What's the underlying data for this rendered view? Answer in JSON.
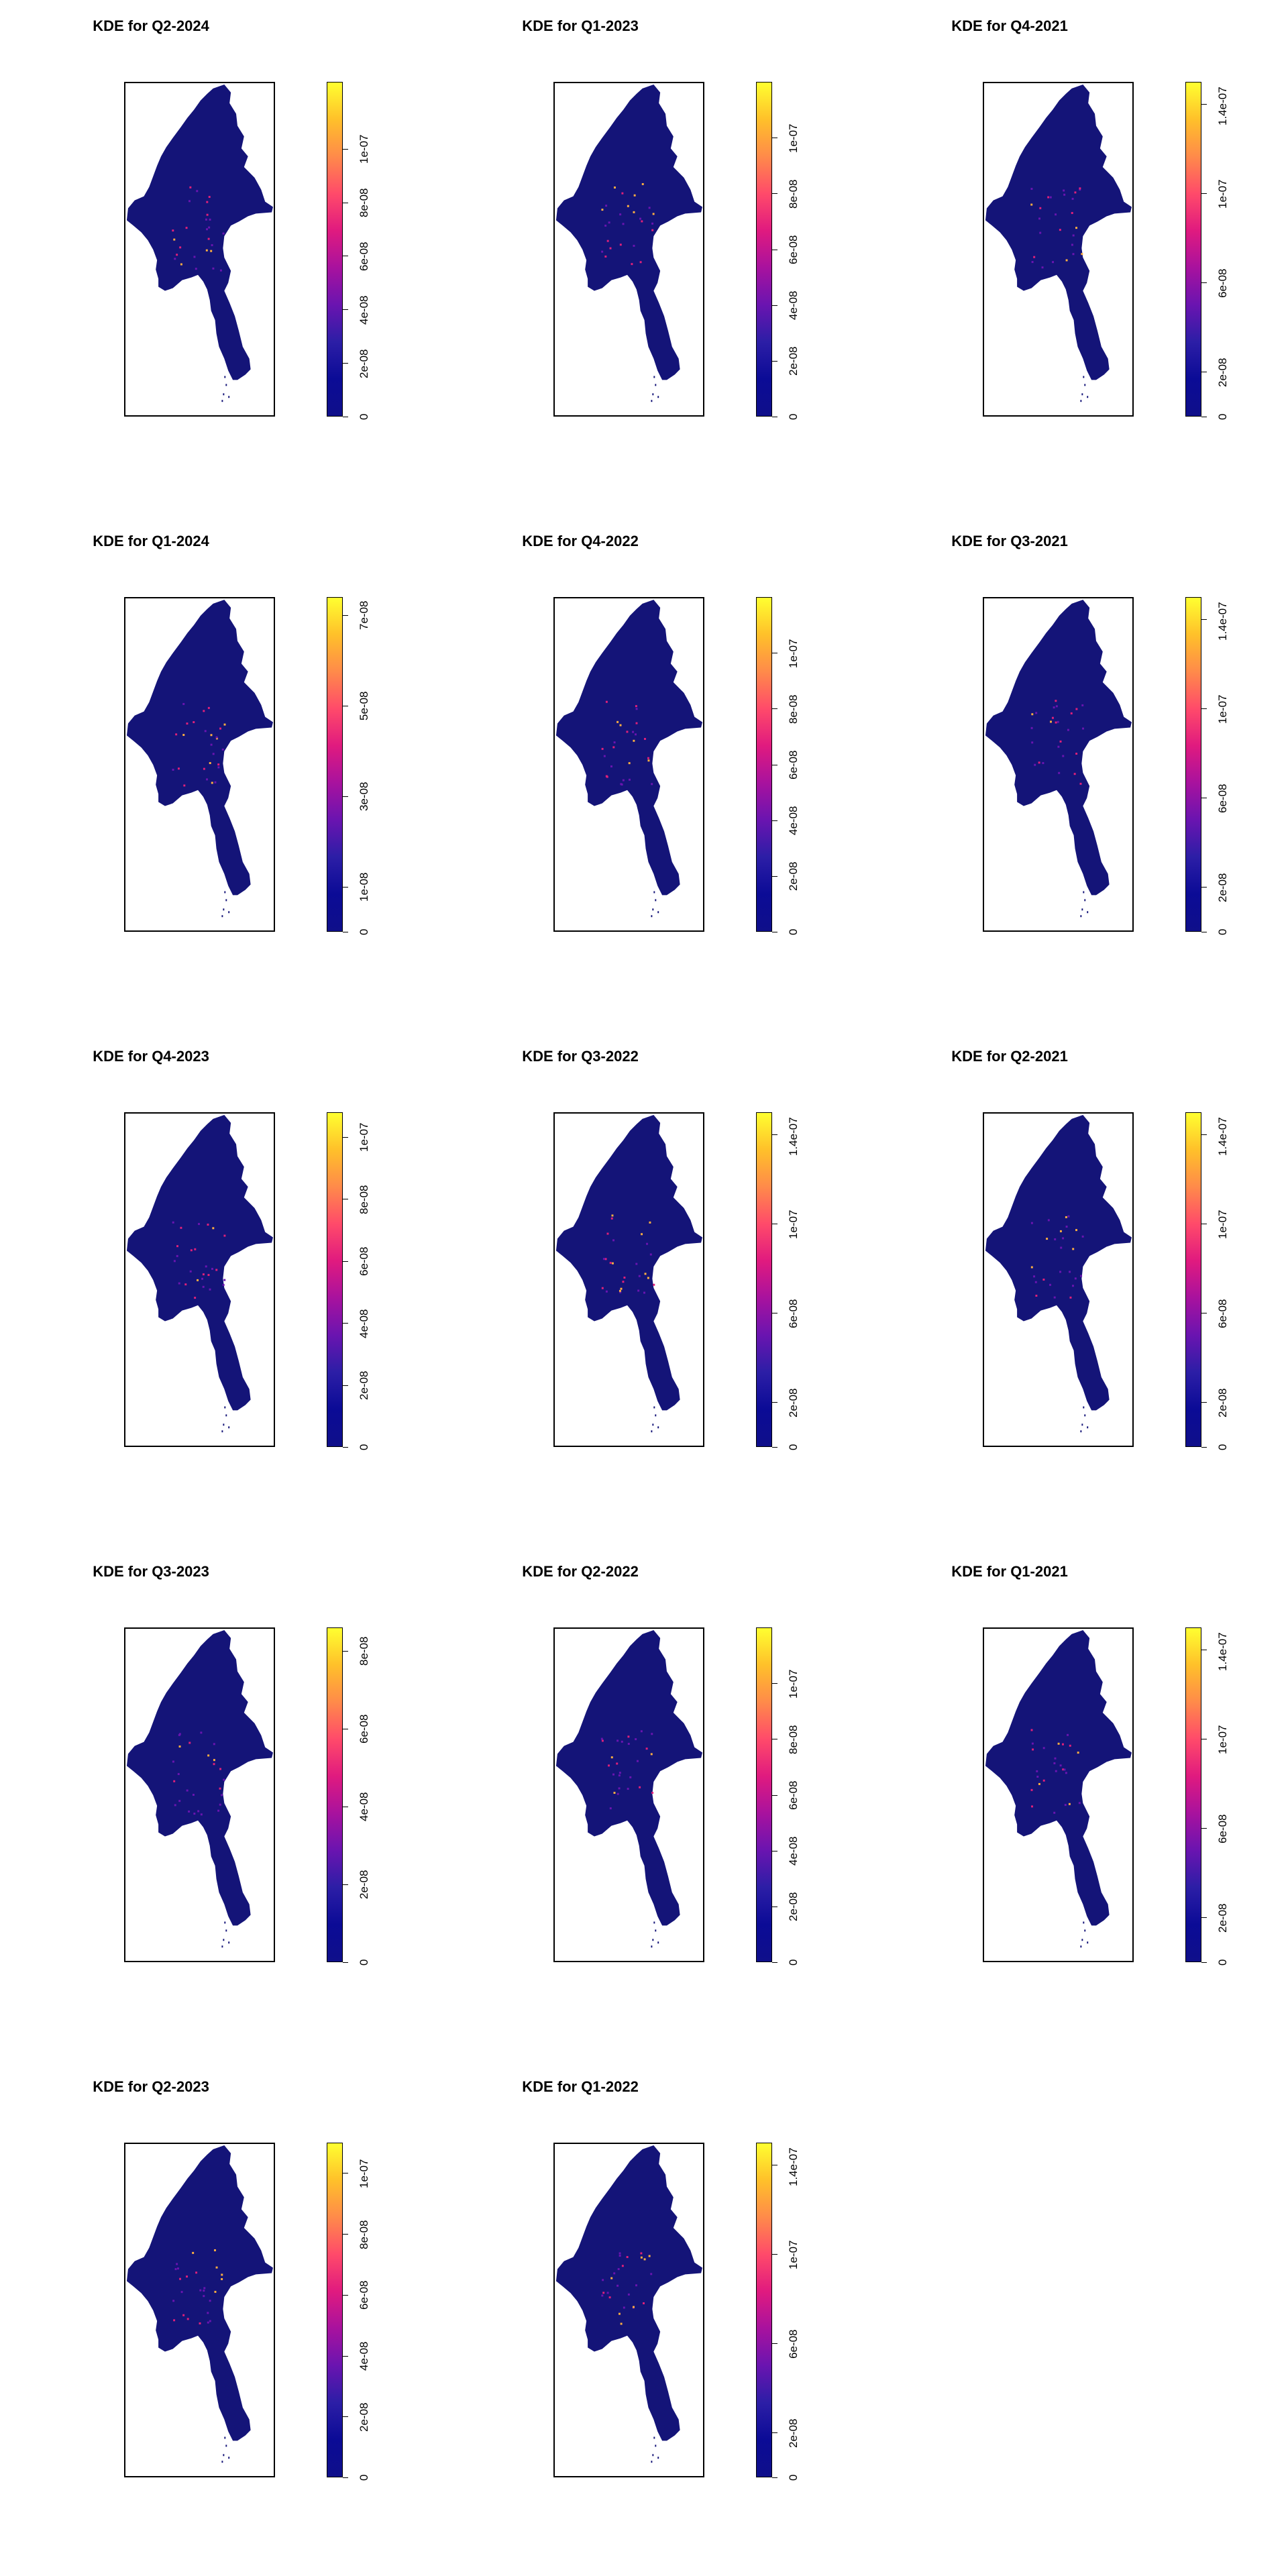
{
  "colors": {
    "gradient": [
      "#0f0f8a",
      "#0b0b96",
      "#2c1ea6",
      "#6a14b0",
      "#a8129e",
      "#e01a7f",
      "#ff4a6a",
      "#ff8a4a",
      "#ffc02a",
      "#ffff30"
    ],
    "map_fill": "#141478",
    "hotspot_low": "#6a14b0",
    "hotspot_mid": "#e0207a",
    "hotspot_high": "#ffb040"
  },
  "chart_data": [
    {
      "type": "heatmap",
      "title": "KDE for Q2-2024",
      "color_scale": "plasma-like",
      "ylim": [
        0,
        1.25e-07
      ],
      "legend_ticks": [
        {
          "value": 0,
          "label": "0"
        },
        {
          "value": 2e-08,
          "label": "2e-08"
        },
        {
          "value": 4e-08,
          "label": "4e-08"
        },
        {
          "value": 6e-08,
          "label": "6e-08"
        },
        {
          "value": 8e-08,
          "label": "8e-08"
        },
        {
          "value": 1e-07,
          "label": "1e-07"
        }
      ]
    },
    {
      "type": "heatmap",
      "title": "KDE for Q1-2023",
      "color_scale": "plasma-like",
      "ylim": [
        0,
        1.2e-07
      ],
      "legend_ticks": [
        {
          "value": 0,
          "label": "0"
        },
        {
          "value": 2e-08,
          "label": "2e-08"
        },
        {
          "value": 4e-08,
          "label": "4e-08"
        },
        {
          "value": 6e-08,
          "label": "6e-08"
        },
        {
          "value": 8e-08,
          "label": "8e-08"
        },
        {
          "value": 1e-07,
          "label": "1e-07"
        }
      ]
    },
    {
      "type": "heatmap",
      "title": "KDE for Q4-2021",
      "color_scale": "plasma-like",
      "ylim": [
        0,
        1.5e-07
      ],
      "legend_ticks": [
        {
          "value": 0,
          "label": "0"
        },
        {
          "value": 2e-08,
          "label": "2e-08"
        },
        {
          "value": 6e-08,
          "label": "6e-08"
        },
        {
          "value": 1e-07,
          "label": "1e-07"
        },
        {
          "value": 1.4e-07,
          "label": "1.4e-07"
        }
      ]
    },
    {
      "type": "heatmap",
      "title": "KDE for Q1-2024",
      "color_scale": "plasma-like",
      "ylim": [
        0,
        7.4e-08
      ],
      "legend_ticks": [
        {
          "value": 0,
          "label": "0"
        },
        {
          "value": 1e-08,
          "label": "1e-08"
        },
        {
          "value": 3e-08,
          "label": "3e-08"
        },
        {
          "value": 5e-08,
          "label": "5e-08"
        },
        {
          "value": 7e-08,
          "label": "7e-08"
        }
      ]
    },
    {
      "type": "heatmap",
      "title": "KDE for Q4-2022",
      "color_scale": "plasma-like",
      "ylim": [
        0,
        1.2e-07
      ],
      "legend_ticks": [
        {
          "value": 0,
          "label": "0"
        },
        {
          "value": 2e-08,
          "label": "2e-08"
        },
        {
          "value": 4e-08,
          "label": "4e-08"
        },
        {
          "value": 6e-08,
          "label": "6e-08"
        },
        {
          "value": 8e-08,
          "label": "8e-08"
        },
        {
          "value": 1e-07,
          "label": "1e-07"
        }
      ]
    },
    {
      "type": "heatmap",
      "title": "KDE for Q3-2021",
      "color_scale": "plasma-like",
      "ylim": [
        0,
        1.5e-07
      ],
      "legend_ticks": [
        {
          "value": 0,
          "label": "0"
        },
        {
          "value": 2e-08,
          "label": "2e-08"
        },
        {
          "value": 6e-08,
          "label": "6e-08"
        },
        {
          "value": 1e-07,
          "label": "1e-07"
        },
        {
          "value": 1.4e-07,
          "label": "1.4e-07"
        }
      ]
    },
    {
      "type": "heatmap",
      "title": "KDE for Q4-2023",
      "color_scale": "plasma-like",
      "ylim": [
        0,
        1.08e-07
      ],
      "legend_ticks": [
        {
          "value": 0,
          "label": "0"
        },
        {
          "value": 2e-08,
          "label": "2e-08"
        },
        {
          "value": 4e-08,
          "label": "4e-08"
        },
        {
          "value": 6e-08,
          "label": "6e-08"
        },
        {
          "value": 8e-08,
          "label": "8e-08"
        },
        {
          "value": 1e-07,
          "label": "1e-07"
        }
      ]
    },
    {
      "type": "heatmap",
      "title": "KDE for Q3-2022",
      "color_scale": "plasma-like",
      "ylim": [
        0,
        1.5e-07
      ],
      "legend_ticks": [
        {
          "value": 0,
          "label": "0"
        },
        {
          "value": 2e-08,
          "label": "2e-08"
        },
        {
          "value": 6e-08,
          "label": "6e-08"
        },
        {
          "value": 1e-07,
          "label": "1e-07"
        },
        {
          "value": 1.4e-07,
          "label": "1.4e-07"
        }
      ]
    },
    {
      "type": "heatmap",
      "title": "KDE for Q2-2021",
      "color_scale": "plasma-like",
      "ylim": [
        0,
        1.5e-07
      ],
      "legend_ticks": [
        {
          "value": 0,
          "label": "0"
        },
        {
          "value": 2e-08,
          "label": "2e-08"
        },
        {
          "value": 6e-08,
          "label": "6e-08"
        },
        {
          "value": 1e-07,
          "label": "1e-07"
        },
        {
          "value": 1.4e-07,
          "label": "1.4e-07"
        }
      ]
    },
    {
      "type": "heatmap",
      "title": "KDE for Q3-2023",
      "color_scale": "plasma-like",
      "ylim": [
        0,
        8.6e-08
      ],
      "legend_ticks": [
        {
          "value": 0,
          "label": "0"
        },
        {
          "value": 2e-08,
          "label": "2e-08"
        },
        {
          "value": 4e-08,
          "label": "4e-08"
        },
        {
          "value": 6e-08,
          "label": "6e-08"
        },
        {
          "value": 8e-08,
          "label": "8e-08"
        }
      ]
    },
    {
      "type": "heatmap",
      "title": "KDE for Q2-2022",
      "color_scale": "plasma-like",
      "ylim": [
        0,
        1.2e-07
      ],
      "legend_ticks": [
        {
          "value": 0,
          "label": "0"
        },
        {
          "value": 2e-08,
          "label": "2e-08"
        },
        {
          "value": 4e-08,
          "label": "4e-08"
        },
        {
          "value": 6e-08,
          "label": "6e-08"
        },
        {
          "value": 8e-08,
          "label": "8e-08"
        },
        {
          "value": 1e-07,
          "label": "1e-07"
        }
      ]
    },
    {
      "type": "heatmap",
      "title": "KDE for Q1-2021",
      "color_scale": "plasma-like",
      "ylim": [
        0,
        1.5e-07
      ],
      "legend_ticks": [
        {
          "value": 0,
          "label": "0"
        },
        {
          "value": 2e-08,
          "label": "2e-08"
        },
        {
          "value": 6e-08,
          "label": "6e-08"
        },
        {
          "value": 1e-07,
          "label": "1e-07"
        },
        {
          "value": 1.4e-07,
          "label": "1.4e-07"
        }
      ]
    },
    {
      "type": "heatmap",
      "title": "KDE for Q2-2023",
      "color_scale": "plasma-like",
      "ylim": [
        0,
        1.1e-07
      ],
      "legend_ticks": [
        {
          "value": 0,
          "label": "0"
        },
        {
          "value": 2e-08,
          "label": "2e-08"
        },
        {
          "value": 4e-08,
          "label": "4e-08"
        },
        {
          "value": 6e-08,
          "label": "6e-08"
        },
        {
          "value": 8e-08,
          "label": "8e-08"
        },
        {
          "value": 1e-07,
          "label": "1e-07"
        }
      ]
    },
    {
      "type": "heatmap",
      "title": "KDE for Q1-2022",
      "color_scale": "plasma-like",
      "ylim": [
        0,
        1.5e-07
      ],
      "legend_ticks": [
        {
          "value": 0,
          "label": "0"
        },
        {
          "value": 2e-08,
          "label": "2e-08"
        },
        {
          "value": 6e-08,
          "label": "6e-08"
        },
        {
          "value": 1e-07,
          "label": "1e-07"
        },
        {
          "value": 1.4e-07,
          "label": "1.4e-07"
        }
      ]
    }
  ]
}
